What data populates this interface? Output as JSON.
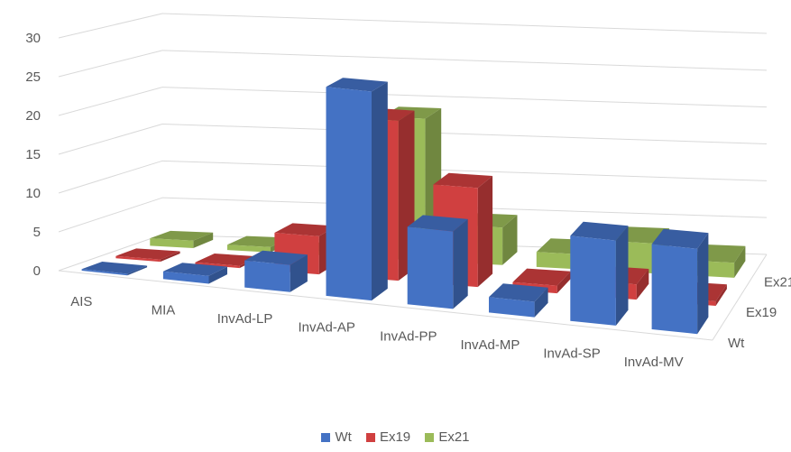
{
  "chart_data": {
    "type": "bar",
    "subtype": "3d-column",
    "categories": [
      "AIS",
      "MIA",
      "InvAd-LP",
      "InvAd-AP",
      "InvAd-PP",
      "InvAd-MP",
      "InvAd-SP",
      "InvAd-MV"
    ],
    "series": [
      {
        "name": "Wt",
        "values": [
          0.2,
          1,
          3.5,
          27,
          10,
          2,
          11,
          11
        ],
        "color": "#4472C4"
      },
      {
        "name": "Ex19",
        "values": [
          0.3,
          0.3,
          5,
          21,
          13,
          1,
          2,
          0.6
        ],
        "color": "#D04040"
      },
      {
        "name": "Ex21",
        "values": [
          1,
          0.7,
          0.5,
          19,
          5,
          2,
          4,
          2
        ],
        "color": "#9BBB59"
      }
    ],
    "ylim": [
      0,
      30
    ],
    "yticks": [
      0,
      5,
      10,
      15,
      20,
      25,
      30
    ],
    "depth_labels": [
      "Wt",
      "Ex19",
      "Ex21"
    ],
    "grid": true,
    "legend_position": "bottom",
    "title": "",
    "xlabel": "",
    "ylabel": ""
  },
  "legend": [
    {
      "label": "Wt",
      "color": "#4472C4"
    },
    {
      "label": "Ex19",
      "color": "#D04040"
    },
    {
      "label": "Ex21",
      "color": "#9BBB59"
    }
  ]
}
